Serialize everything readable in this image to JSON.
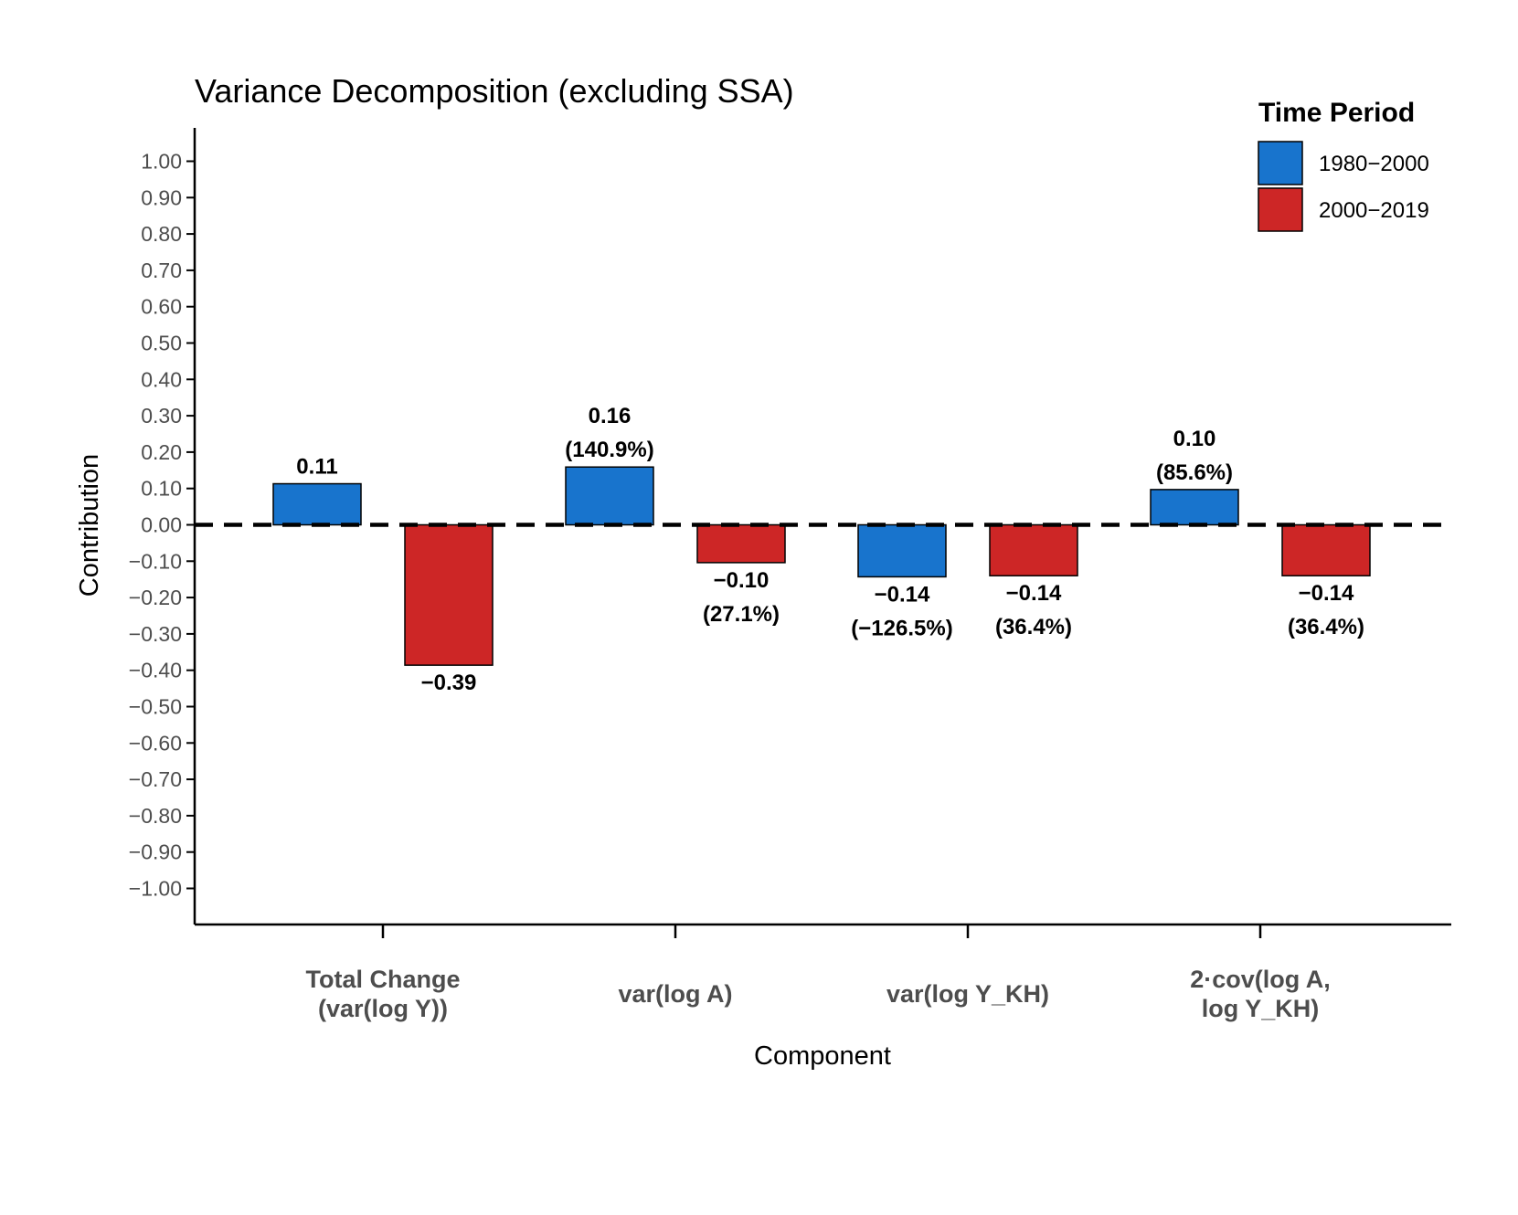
{
  "chart_data": {
    "type": "bar",
    "title": "Variance Decomposition (excluding SSA)",
    "xlabel": "Component",
    "ylabel": "Contribution",
    "ylim": [
      -1.0,
      1.0
    ],
    "yticks": [
      1.0,
      0.9,
      0.8,
      0.7,
      0.6,
      0.5,
      0.4,
      0.3,
      0.2,
      0.1,
      0.0,
      -0.1,
      -0.2,
      -0.3,
      -0.4,
      -0.5,
      -0.6,
      -0.7,
      -0.8,
      -0.9,
      -1.0
    ],
    "ytick_labels": [
      "1.00",
      "0.90",
      "0.80",
      "0.70",
      "0.60",
      "0.50",
      "0.40",
      "0.30",
      "0.20",
      "0.10",
      "0.00",
      "−0.10",
      "−0.20",
      "−0.30",
      "−0.40",
      "−0.50",
      "−0.60",
      "−0.70",
      "−0.80",
      "−0.90",
      "−1.00"
    ],
    "categories": [
      [
        "Total Change",
        "(var(log Y))"
      ],
      [
        "var(log A)"
      ],
      [
        "var(log Y_KH)"
      ],
      [
        "2·cov(log A,",
        "log Y_KH)"
      ]
    ],
    "reference_line": 0.0,
    "legend": {
      "title": "Time Period",
      "position": "top-right"
    },
    "series": [
      {
        "name": "1980−2000",
        "color": "#1874CD",
        "values": [
          0.113,
          0.159,
          -0.143,
          0.097
        ],
        "labels": [
          [
            "0.11"
          ],
          [
            "0.16",
            "(140.9%)"
          ],
          [
            "−0.14",
            "(−126.5%)"
          ],
          [
            "0.10",
            "(85.6%)"
          ]
        ]
      },
      {
        "name": "2000−2019",
        "color": "#CD2626",
        "values": [
          -0.386,
          -0.104,
          -0.14,
          -0.14
        ],
        "labels": [
          [
            "−0.39"
          ],
          [
            "−0.10",
            "(27.1%)"
          ],
          [
            "−0.14",
            "(36.4%)"
          ],
          [
            "−0.14",
            "(36.4%)"
          ]
        ]
      }
    ]
  }
}
